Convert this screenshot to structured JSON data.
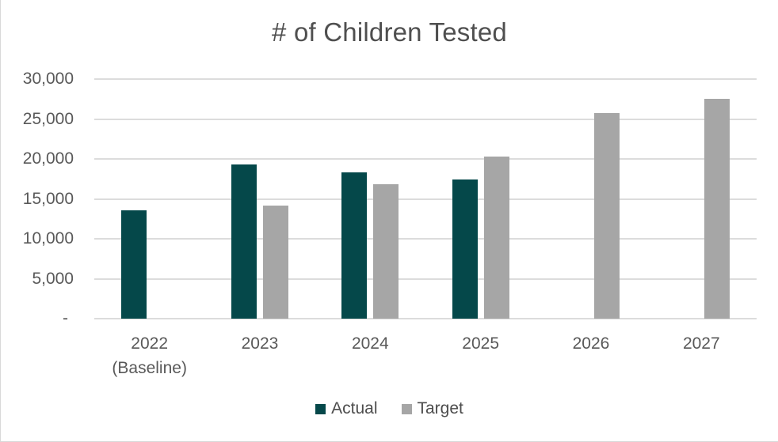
{
  "title": "# of Children Tested",
  "colors": {
    "actual": "#05484A",
    "target": "#A6A6A6",
    "gridline": "#DCDCDC",
    "axis_text": "#595959",
    "title_text": "#4F4F4F",
    "border": "#D9D9D9"
  },
  "chart_data": {
    "type": "bar",
    "title": "# of Children Tested",
    "xlabel": "",
    "ylabel": "",
    "grid": true,
    "legend_position": "bottom",
    "ylim": [
      0,
      30000
    ],
    "yticks": [
      {
        "value": 30000,
        "label": "30,000"
      },
      {
        "value": 25000,
        "label": "25,000"
      },
      {
        "value": 20000,
        "label": "20,000"
      },
      {
        "value": 15000,
        "label": "15,000"
      },
      {
        "value": 10000,
        "label": "10,000"
      },
      {
        "value": 5000,
        "label": "5,000"
      },
      {
        "value": 0,
        "label": "-"
      }
    ],
    "categories": [
      {
        "label": "2022",
        "sublabel": "(Baseline)"
      },
      {
        "label": "2023",
        "sublabel": ""
      },
      {
        "label": "2024",
        "sublabel": ""
      },
      {
        "label": "2025",
        "sublabel": ""
      },
      {
        "label": "2026",
        "sublabel": ""
      },
      {
        "label": "2027",
        "sublabel": ""
      }
    ],
    "series": [
      {
        "name": "Actual",
        "key": "actual",
        "color": "#05484A",
        "values": [
          13600,
          19300,
          18300,
          17400,
          null,
          null
        ]
      },
      {
        "name": "Target",
        "key": "target",
        "color": "#A6A6A6",
        "values": [
          null,
          14200,
          16800,
          20300,
          25700,
          27500
        ]
      }
    ]
  }
}
